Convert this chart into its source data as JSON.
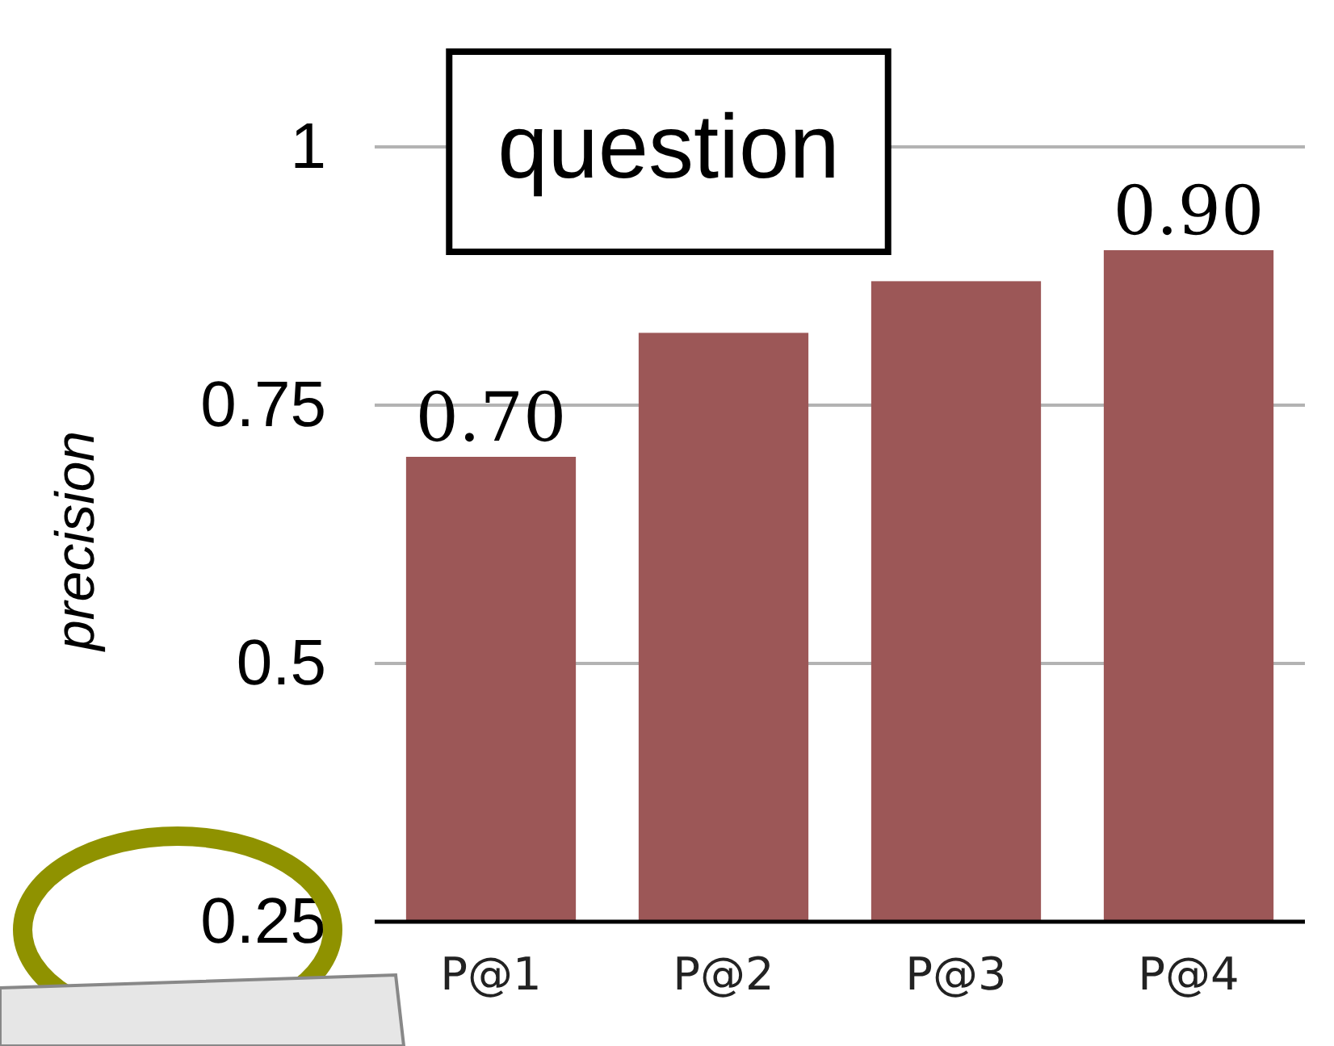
{
  "chart_data": {
    "type": "bar",
    "ylabel": "precision",
    "categories": [
      "P@1",
      "P@2",
      "P@3",
      "P@4"
    ],
    "values": [
      0.7,
      0.82,
      0.87,
      0.9
    ],
    "value_labels": [
      "0.70",
      null,
      null,
      "0.90"
    ],
    "color": "#9c5757",
    "ylim": [
      0.25,
      1
    ],
    "yticks": [
      0.25,
      0.5,
      0.75,
      1
    ],
    "grid": "y",
    "annotations": [
      "question"
    ]
  }
}
